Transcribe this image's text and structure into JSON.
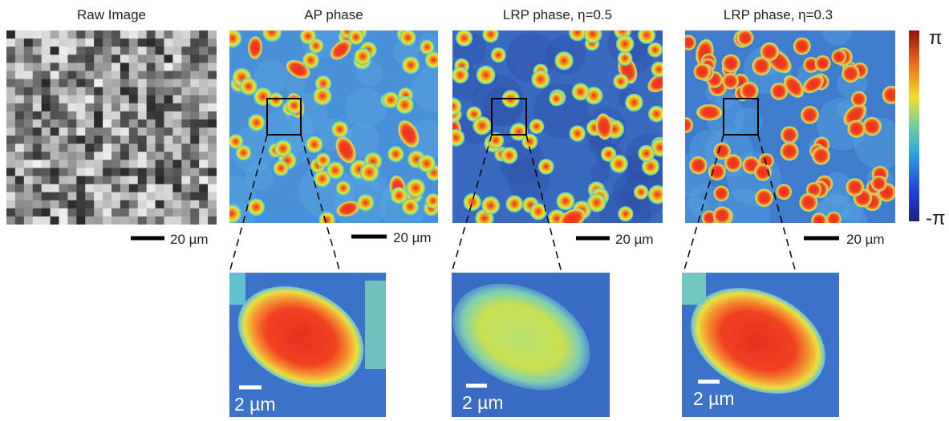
{
  "panels": [
    {
      "title": "Raw Image",
      "scale_bar": "20 µm"
    },
    {
      "title": "AP phase",
      "scale_bar": "20 µm",
      "inset_scale_bar": "2 µm"
    },
    {
      "title": "LRP phase, η=0.5",
      "scale_bar": "20 µm",
      "inset_scale_bar": "2 µm"
    },
    {
      "title": "LRP phase, η=0.3",
      "scale_bar": "20 µm",
      "inset_scale_bar": "2 µm"
    }
  ],
  "colorbar": {
    "max_label": "π",
    "min_label": "-π"
  }
}
